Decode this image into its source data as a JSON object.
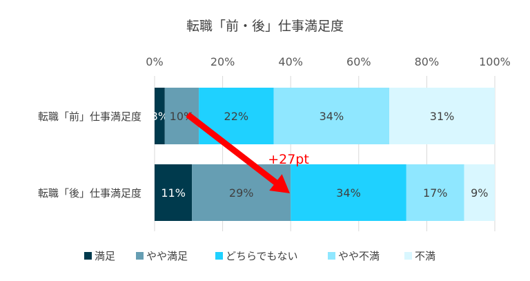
{
  "chart_data": {
    "type": "bar",
    "orientation": "horizontal",
    "stacked": "percent",
    "title": "転職「前・後」仕事満足度",
    "categories": [
      "転職「前」仕事満足度",
      "転職「後」仕事満足度"
    ],
    "x_ticks": [
      "0%",
      "20%",
      "40%",
      "60%",
      "80%",
      "100%"
    ],
    "xlim": [
      0,
      100
    ],
    "grid": true,
    "legend_position": "bottom",
    "series": [
      {
        "name": "満足",
        "values": [
          3,
          11
        ],
        "labels": [
          "3%",
          "11%"
        ],
        "color": "#003a4d",
        "label_color": "#ffffff"
      },
      {
        "name": "やや満足",
        "values": [
          10,
          29
        ],
        "labels": [
          "10%",
          "29%"
        ],
        "color": "#669eb3",
        "label_color": "#404040"
      },
      {
        "name": "どちらでもない",
        "values": [
          22,
          34
        ],
        "labels": [
          "22%",
          "34%"
        ],
        "color": "#1fd1ff",
        "label_color": "#404040"
      },
      {
        "name": "やや不満",
        "values": [
          34,
          17
        ],
        "labels": [
          "34%",
          "17%"
        ],
        "color": "#8fe7ff",
        "label_color": "#404040"
      },
      {
        "name": "不満",
        "values": [
          31,
          9
        ],
        "labels": [
          "31%",
          "9%"
        ],
        "color": "#d9f7ff",
        "label_color": "#404040"
      }
    ],
    "annotation": {
      "text": "+27pt",
      "color": "#ff0000"
    }
  }
}
